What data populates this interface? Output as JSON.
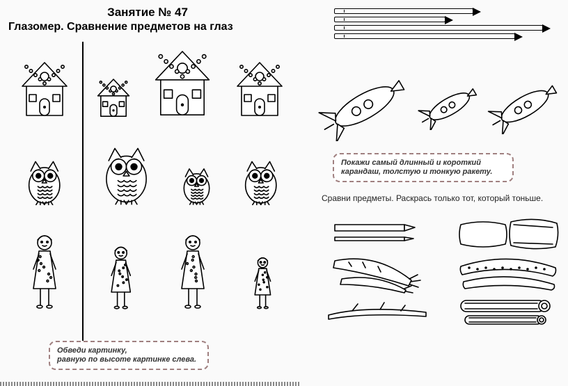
{
  "title": {
    "main": "Занятие № 47",
    "sub": "Глазомер. Сравнение предметов на глаз"
  },
  "left": {
    "callout": "Обведи картинку,\nравную по высоте картинке слева.",
    "rows": {
      "houses": {
        "ref_scale": 1.0,
        "options": [
          0.7,
          1.2,
          1.0
        ]
      },
      "owls": {
        "ref_scale": 0.85,
        "options": [
          1.1,
          0.7,
          0.85
        ]
      },
      "girls": {
        "ref_scale": 1.0,
        "options": [
          0.85,
          1.0,
          0.7
        ]
      }
    }
  },
  "right": {
    "pencils_widths": [
      200,
      160,
      300,
      260
    ],
    "rocket_scales": [
      1.25,
      0.85,
      1.0
    ],
    "callout": "Покажи самый длинный и короткий карандаш, толстую и тонкую ракету.",
    "compare_text": "Сравни предметы. Раскрась только тот, который тоньше.",
    "pairs": [
      {
        "left": "pencils2",
        "right": "pillows"
      },
      {
        "left": "carrots",
        "right": "cucumbers"
      },
      {
        "left": "branch",
        "right": "logs"
      }
    ]
  },
  "colors": {
    "stroke": "#000000",
    "bg": "#fafafa",
    "callout_border": "#a08080"
  }
}
